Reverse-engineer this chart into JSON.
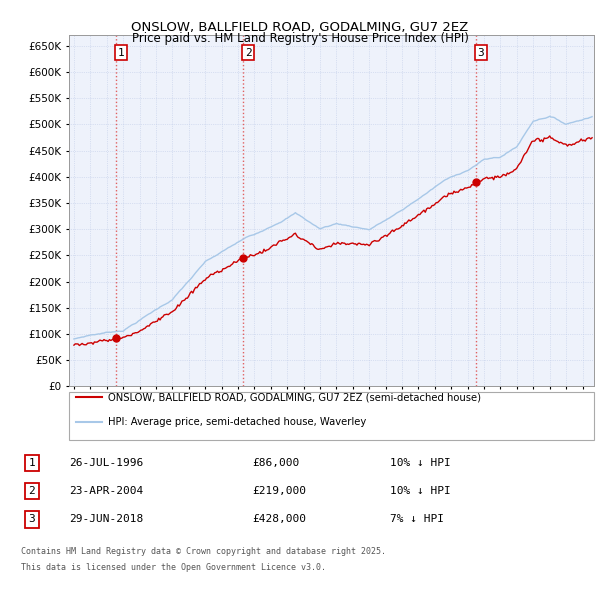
{
  "title": "ONSLOW, BALLFIELD ROAD, GODALMING, GU7 2EZ",
  "subtitle": "Price paid vs. HM Land Registry's House Price Index (HPI)",
  "legend_line1": "ONSLOW, BALLFIELD ROAD, GODALMING, GU7 2EZ (semi-detached house)",
  "legend_line2": "HPI: Average price, semi-detached house, Waverley",
  "footer1": "Contains HM Land Registry data © Crown copyright and database right 2025.",
  "footer2": "This data is licensed under the Open Government Licence v3.0.",
  "transactions": [
    {
      "label": "1",
      "date": "26-JUL-1996",
      "price": "£86,000",
      "pct": "10% ↓ HPI",
      "x": 1996.57
    },
    {
      "label": "2",
      "date": "23-APR-2004",
      "price": "£219,000",
      "pct": "10% ↓ HPI",
      "x": 2004.31
    },
    {
      "label": "3",
      "date": "29-JUN-2018",
      "price": "£428,000",
      "pct": "7% ↓ HPI",
      "x": 2018.49
    }
  ],
  "ylim": [
    0,
    670000
  ],
  "yticks": [
    0,
    50000,
    100000,
    150000,
    200000,
    250000,
    300000,
    350000,
    400000,
    450000,
    500000,
    550000,
    600000,
    650000
  ],
  "xlim_start": 1993.7,
  "xlim_end": 2025.7,
  "price_color": "#cc0000",
  "hpi_color": "#a8c8e8",
  "vline_color": "#e06060",
  "background_color": "#eef2fb",
  "grid_color": "#c0cce8"
}
